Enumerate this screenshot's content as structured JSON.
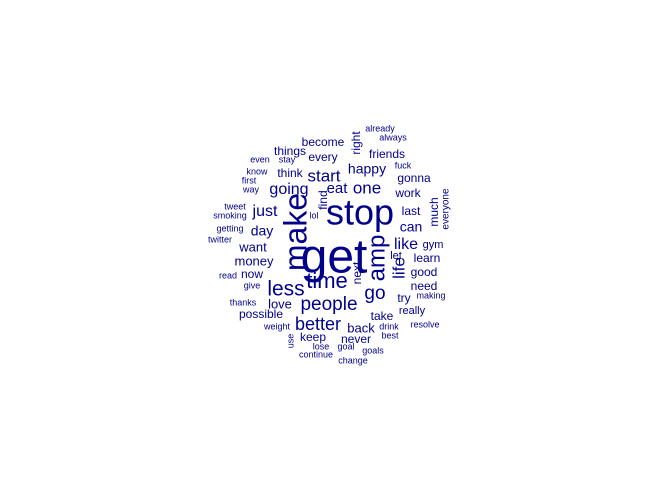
{
  "word_color": "#00008B",
  "words": [
    {
      "text": "get",
      "size": 9
    },
    {
      "text": "stop",
      "size": 8
    },
    {
      "text": "make",
      "size": 8
    },
    {
      "text": "amp",
      "size": 7
    },
    {
      "text": "time",
      "size": 6
    },
    {
      "text": "less",
      "size": 6
    },
    {
      "text": "people",
      "size": 6
    },
    {
      "text": "better",
      "size": 6
    },
    {
      "text": "start",
      "size": 5
    },
    {
      "text": "going",
      "size": 5
    },
    {
      "text": "one",
      "size": 5
    },
    {
      "text": "go",
      "size": 5
    },
    {
      "text": "like",
      "size": 5
    },
    {
      "text": "life",
      "size": 5
    },
    {
      "text": "just",
      "size": 5
    },
    {
      "text": "eat",
      "size": 4
    },
    {
      "text": "happy",
      "size": 4
    },
    {
      "text": "can",
      "size": 4
    },
    {
      "text": "money",
      "size": 4
    },
    {
      "text": "want",
      "size": 4
    },
    {
      "text": "day",
      "size": 4
    },
    {
      "text": "love",
      "size": 4
    },
    {
      "text": "back",
      "size": 4
    },
    {
      "text": "keep",
      "size": 3
    },
    {
      "text": "never",
      "size": 3
    },
    {
      "text": "take",
      "size": 3
    },
    {
      "text": "last",
      "size": 3
    },
    {
      "text": "learn",
      "size": 3
    },
    {
      "text": "need",
      "size": 3
    },
    {
      "text": "good",
      "size": 3
    },
    {
      "text": "try",
      "size": 3
    },
    {
      "text": "work",
      "size": 3
    },
    {
      "text": "gonna",
      "size": 3
    },
    {
      "text": "friends",
      "size": 3
    },
    {
      "text": "every",
      "size": 3
    },
    {
      "text": "become",
      "size": 3
    },
    {
      "text": "things",
      "size": 3
    },
    {
      "text": "think",
      "size": 3
    },
    {
      "text": "right",
      "size": 3
    },
    {
      "text": "next",
      "size": 3
    },
    {
      "text": "find",
      "size": 3
    },
    {
      "text": "possible",
      "size": 3
    },
    {
      "text": "now",
      "size": 3
    },
    {
      "text": "much",
      "size": 3
    },
    {
      "text": "really",
      "size": 3
    },
    {
      "text": "let",
      "size": 2
    },
    {
      "text": "gym",
      "size": 2
    },
    {
      "text": "everyone",
      "size": 2
    },
    {
      "text": "making",
      "size": 2
    },
    {
      "text": "resolve",
      "size": 2
    },
    {
      "text": "drink",
      "size": 2
    },
    {
      "text": "best",
      "size": 2
    },
    {
      "text": "goals",
      "size": 2
    },
    {
      "text": "goal",
      "size": 2
    },
    {
      "text": "lose",
      "size": 2
    },
    {
      "text": "continue",
      "size": 2
    },
    {
      "text": "change",
      "size": 2
    },
    {
      "text": "use",
      "size": 2
    },
    {
      "text": "weight",
      "size": 2
    },
    {
      "text": "thanks",
      "size": 2
    },
    {
      "text": "give",
      "size": 2
    },
    {
      "text": "read",
      "size": 2
    },
    {
      "text": "twitter",
      "size": 2
    },
    {
      "text": "getting",
      "size": 2
    },
    {
      "text": "smoking",
      "size": 2
    },
    {
      "text": "tweet",
      "size": 2
    },
    {
      "text": "lol",
      "size": 2
    },
    {
      "text": "way",
      "size": 2
    },
    {
      "text": "first",
      "size": 2
    },
    {
      "text": "know",
      "size": 2
    },
    {
      "text": "even",
      "size": 2
    },
    {
      "text": "stay",
      "size": 2
    },
    {
      "text": "fuck",
      "size": 2
    },
    {
      "text": "already",
      "size": 2
    },
    {
      "text": "always",
      "size": 2
    }
  ]
}
